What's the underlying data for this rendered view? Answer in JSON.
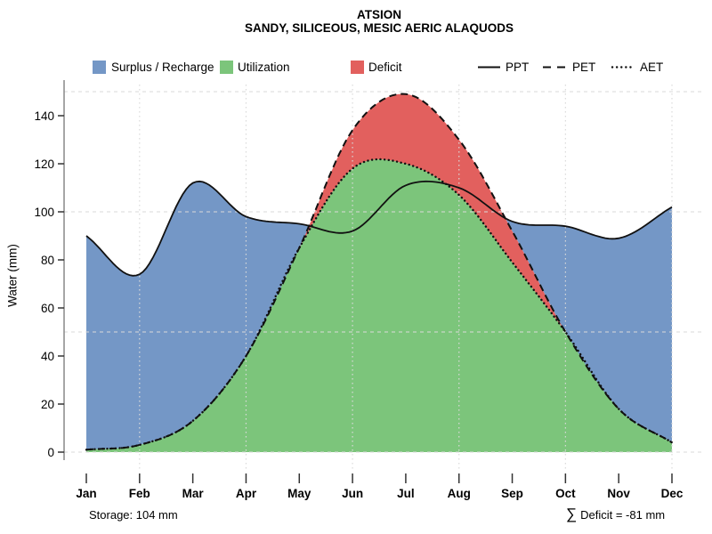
{
  "header": {
    "title": "ATSION",
    "subtitle": "SANDY, SILICEOUS, MESIC AERIC ALAQUODS"
  },
  "legend": {
    "fills": [
      {
        "label": "Surplus / Recharge",
        "color": "#7497C6"
      },
      {
        "label": "Utilization",
        "color": "#7CC57B"
      },
      {
        "label": "Deficit",
        "color": "#E2605E"
      }
    ],
    "lines": [
      {
        "label": "PPT",
        "style": "solid"
      },
      {
        "label": "PET",
        "style": "dashed"
      },
      {
        "label": "AET",
        "style": "dotted"
      }
    ]
  },
  "footer": {
    "storage": "Storage: 104 mm",
    "deficit_sigma": "∑",
    "deficit_text": "Deficit = -81 mm"
  },
  "chart_data": {
    "type": "area",
    "title": "ATSION",
    "subtitle": "SANDY, SILICEOUS, MESIC AERIC ALAQUODS",
    "xlabel": "",
    "ylabel": "Water (mm)",
    "categories": [
      "Jan",
      "Feb",
      "Mar",
      "Apr",
      "May",
      "Jun",
      "Jul",
      "Aug",
      "Sep",
      "Oct",
      "Nov",
      "Dec"
    ],
    "y_ticks": [
      0,
      20,
      40,
      60,
      80,
      100,
      120,
      140
    ],
    "ylim": [
      0,
      155
    ],
    "grid": {
      "h_lines_mm": [
        0,
        50,
        100,
        150
      ],
      "v_line_months": [
        "Feb",
        "Apr",
        "Jun",
        "Aug",
        "Oct",
        "Dec"
      ],
      "style": "light dashed/dotted, drawn over fills"
    },
    "legend_position": "top",
    "series": [
      {
        "name": "PPT",
        "style": "solid",
        "values": [
          90,
          74,
          112,
          98,
          95,
          92,
          111,
          110,
          96,
          94,
          89,
          102
        ]
      },
      {
        "name": "PET",
        "style": "dashed",
        "values": [
          1,
          3,
          13,
          40,
          85,
          134,
          149,
          130,
          92,
          50,
          18,
          4
        ]
      },
      {
        "name": "AET",
        "style": "dotted",
        "values": [
          1,
          3,
          13,
          40,
          85,
          118,
          120,
          107,
          79,
          50,
          18,
          4
        ]
      }
    ],
    "areas": [
      {
        "name": "Surplus / Recharge",
        "rule": "between PET and PPT where PPT > PET"
      },
      {
        "name": "Utilization",
        "rule": "between 0 and AET"
      },
      {
        "name": "Deficit",
        "rule": "between AET and PET where PET > AET"
      }
    ],
    "annotations": {
      "storage_mm": 104,
      "deficit_sum_mm": -81
    }
  }
}
